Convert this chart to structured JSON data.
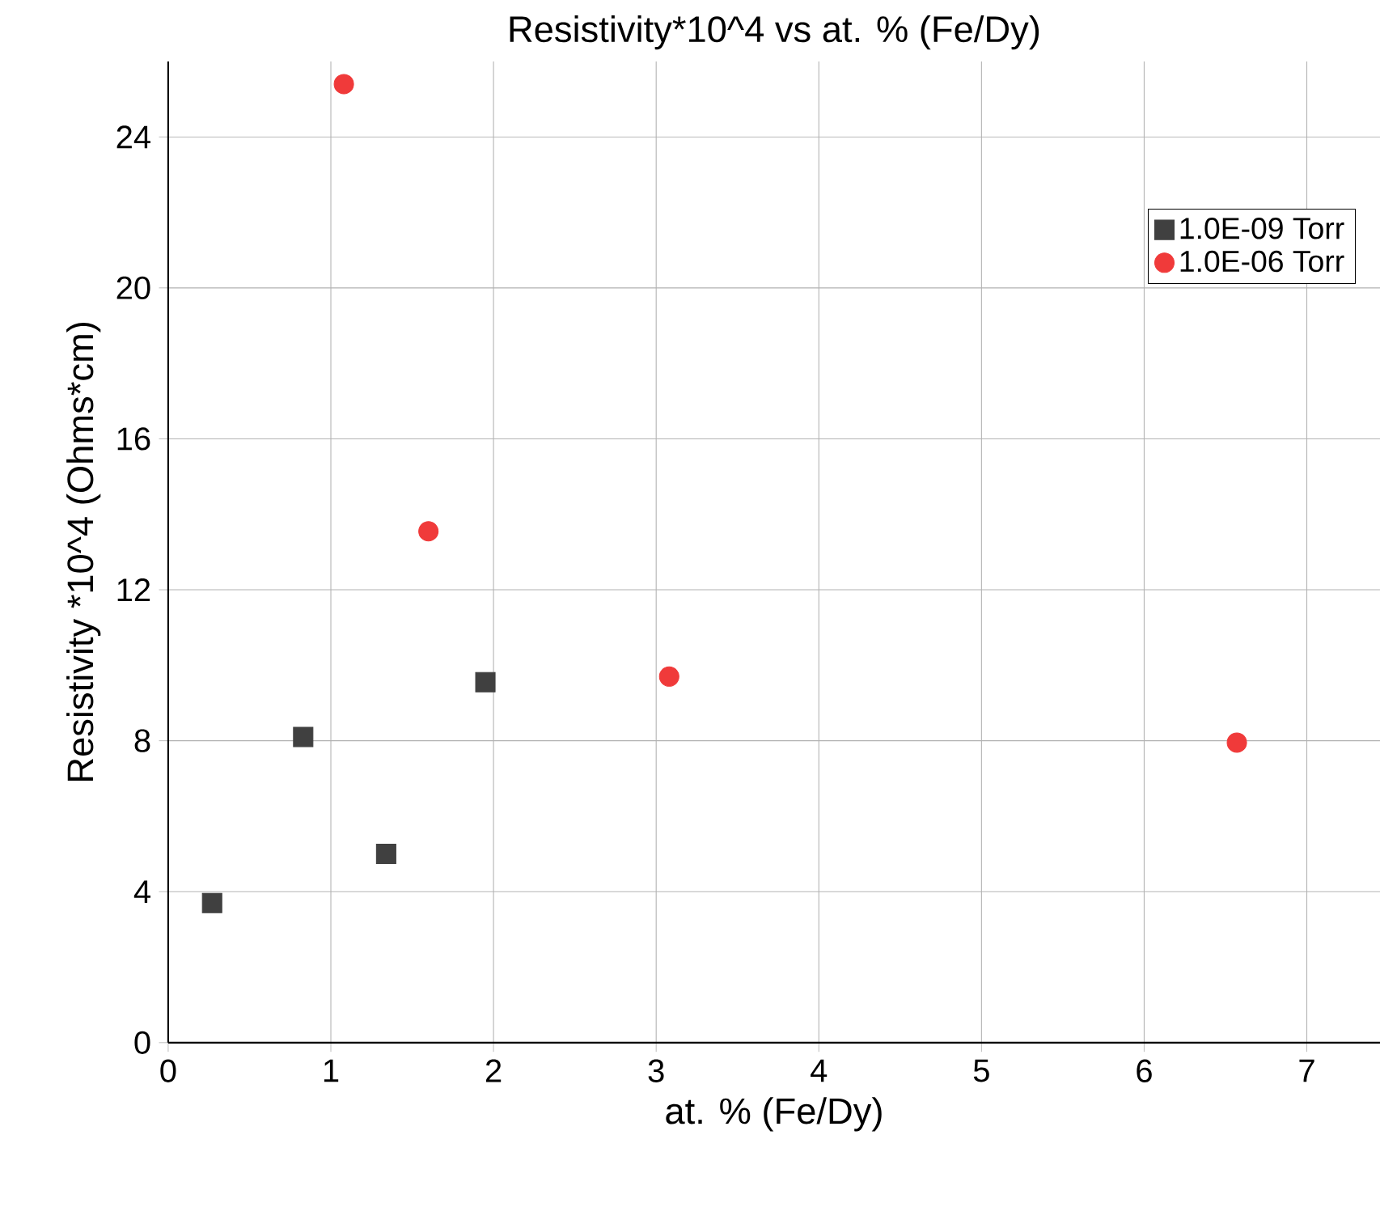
{
  "chart_data": {
    "type": "scatter",
    "title": "Resistivity*10^4 vs at. % (Fe/Dy)",
    "xlabel": "at. % (Fe/Dy)",
    "ylabel": "Resistivity *10^4 (Ohms*cm)",
    "xlim": [
      0,
      7.45
    ],
    "ylim": [
      0,
      26
    ],
    "xticks": [
      0,
      1,
      2,
      3,
      4,
      5,
      6,
      7
    ],
    "yticks": [
      0,
      4,
      8,
      12,
      16,
      20,
      24
    ],
    "grid": true,
    "legend": "right",
    "series": [
      {
        "name": "1.0E-09 Torr",
        "color": "#404040",
        "marker": "square",
        "x": [
          0.27,
          0.83,
          1.34,
          1.95
        ],
        "values": [
          3.7,
          8.1,
          5.0,
          9.55
        ]
      },
      {
        "name": "1.0E-06 Torr",
        "color": "#f03a3a",
        "marker": "circle",
        "x": [
          1.08,
          1.6,
          3.08,
          6.57
        ],
        "values": [
          25.4,
          13.55,
          9.7,
          7.95
        ]
      }
    ]
  }
}
